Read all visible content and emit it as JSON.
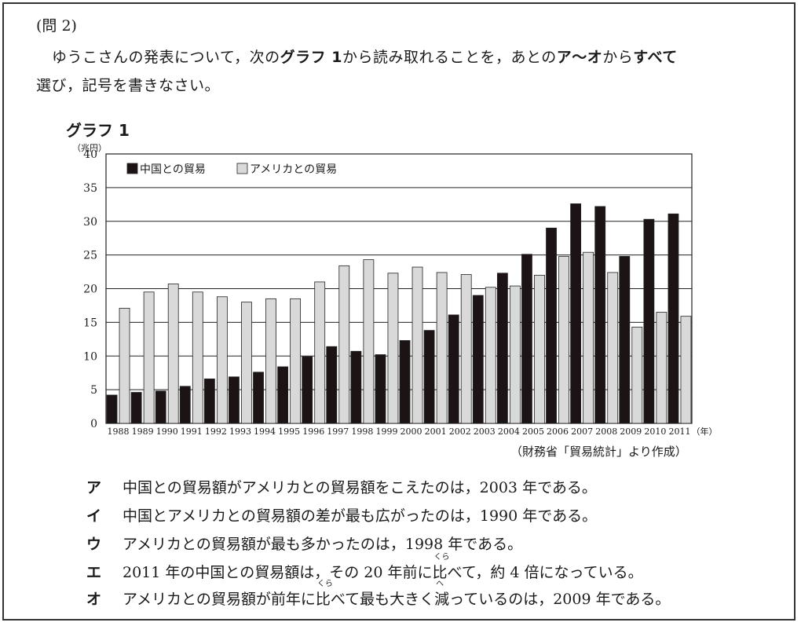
{
  "question": {
    "number": "(問 2)",
    "line1_parts": [
      "ゆうこさんの発表について，次の",
      "グラフ 1",
      "から読み取れることを，あとの",
      "ア〜オ",
      "から",
      "すべて"
    ],
    "line2": "選び，記号を書きなさい。"
  },
  "graph_label": "グラフ 1",
  "unit_label": "（兆円）",
  "source": "（財務省「貿易統計」より作成）",
  "chart_data": {
    "type": "bar",
    "title": "",
    "ylabel": "（兆円）",
    "xlabel": "（年）",
    "ylim": [
      0,
      40
    ],
    "yticks": [
      0,
      5,
      10,
      15,
      20,
      25,
      30,
      35,
      40
    ],
    "grid": true,
    "legend_position": "top-left",
    "categories": [
      "1988",
      "1989",
      "1990",
      "1991",
      "1992",
      "1993",
      "1994",
      "1995",
      "1996",
      "1997",
      "1998",
      "1999",
      "2000",
      "2001",
      "2002",
      "2003",
      "2004",
      "2005",
      "2006",
      "2007",
      "2008",
      "2009",
      "2010",
      "2011"
    ],
    "series": [
      {
        "name": "中国との貿易",
        "color": "#1c1414",
        "values": [
          4.2,
          4.6,
          4.8,
          5.5,
          6.6,
          6.9,
          7.6,
          8.4,
          9.9,
          11.4,
          10.7,
          10.2,
          12.3,
          13.8,
          16.1,
          19.0,
          22.3,
          25.1,
          29.0,
          32.6,
          32.2,
          24.8,
          30.3,
          31.1
        ]
      },
      {
        "name": "アメリカとの貿易",
        "color": "#d9d9d9",
        "values": [
          17.1,
          19.5,
          20.7,
          19.5,
          18.8,
          18.0,
          18.5,
          18.5,
          21.0,
          23.4,
          24.3,
          22.3,
          23.2,
          22.4,
          22.1,
          20.2,
          20.4,
          22.0,
          24.8,
          25.4,
          22.4,
          14.3,
          16.5,
          15.9
        ]
      }
    ]
  },
  "options": [
    {
      "mark": "ア",
      "text": "中国との貿易額がアメリカとの貿易額をこえたのは，2003 年である。"
    },
    {
      "mark": "イ",
      "text": "中国とアメリカとの貿易額の差が最も広がったのは，1990 年である。"
    },
    {
      "mark": "ウ",
      "text": "アメリカとの貿易額が最も多かったのは，1998 年である。"
    },
    {
      "mark": "エ",
      "text_before": "2011 年の中国との貿易額は，その 20 年前に",
      "ruby_base": "比",
      "ruby_text": "くら",
      "text_after": "べて，約 4 倍になっている。"
    },
    {
      "mark": "オ",
      "text_before": "アメリカとの貿易額が前年に",
      "ruby_base": "比",
      "ruby_text": "くら",
      "text_mid": "べて最も大きく",
      "ruby_base2": "減",
      "ruby_text2": "へ",
      "text_after": "っているのは，2009 年である。"
    }
  ]
}
